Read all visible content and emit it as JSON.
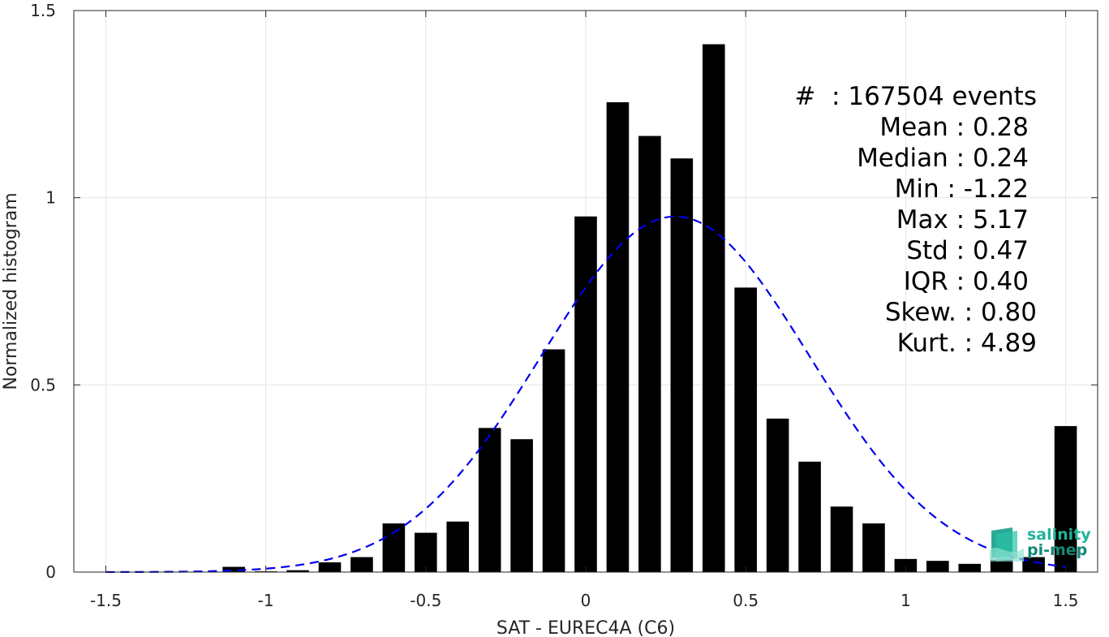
{
  "chart_data": {
    "type": "bar",
    "xlabel": "SAT - EUREC4A (C6)",
    "ylabel": "Normalized histogram",
    "xlim": [
      -1.6,
      1.6
    ],
    "ylim": [
      0,
      1.5
    ],
    "xticks": [
      "-1.5",
      "-1",
      "-0.5",
      "0",
      "0.5",
      "1",
      "1.5"
    ],
    "yticks": [
      "0",
      "0.5",
      "1",
      "1.5"
    ],
    "grid": true,
    "bins": {
      "centers": [
        -1.5,
        -1.4,
        -1.3,
        -1.2,
        -1.1,
        -1.0,
        -0.9,
        -0.8,
        -0.7,
        -0.6,
        -0.5,
        -0.4,
        -0.3,
        -0.2,
        -0.1,
        0.0,
        0.1,
        0.2,
        0.3,
        0.4,
        0.5,
        0.6,
        0.7,
        0.8,
        0.9,
        1.0,
        1.1,
        1.2,
        1.3,
        1.4,
        1.5
      ],
      "values": [
        0,
        0,
        0,
        0,
        0.014,
        0.002,
        0.005,
        0.026,
        0.04,
        0.13,
        0.105,
        0.135,
        0.385,
        0.355,
        0.595,
        0.95,
        1.255,
        1.165,
        1.105,
        1.41,
        0.76,
        0.41,
        0.295,
        0.175,
        0.13,
        0.035,
        0.03,
        0.022,
        0.033,
        0.04,
        0.39
      ]
    },
    "gaussian_fit": {
      "mean": 0.28,
      "std": 0.42,
      "style": "dashed",
      "color": "#0000ee"
    },
    "bar_color": "#000000",
    "stats_annotation": [
      "#  : 167504 events",
      "Mean : 0.28",
      "Median : 0.24",
      "Min : -1.22",
      "Max : 5.17",
      "Std : 0.47",
      "IQR : 0.40",
      "Skew. : 0.80",
      "Kurt. : 4.89"
    ]
  },
  "logo": {
    "line1": "salinity",
    "line2": "pi-mep"
  }
}
